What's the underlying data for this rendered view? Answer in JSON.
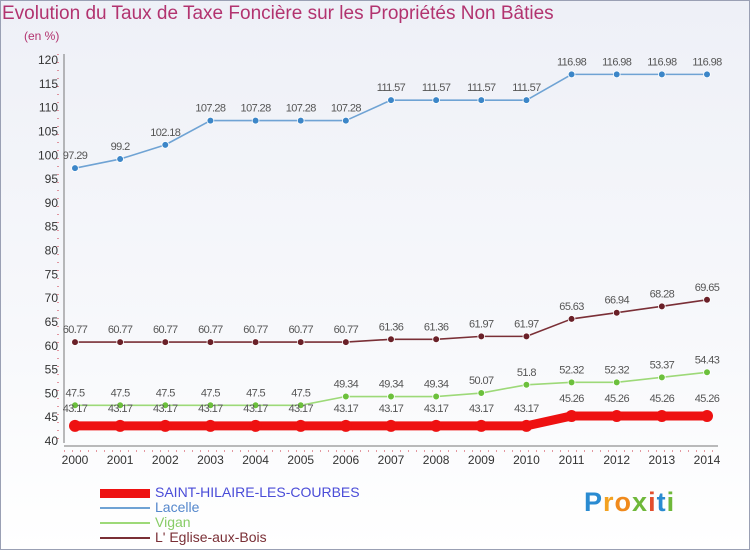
{
  "title": "Evolution du Taux de Taxe Foncière sur les Propriétés Non Bâties",
  "subtitle": "(en %)",
  "brand": {
    "letters": [
      "P",
      "r",
      "o",
      "x",
      "i",
      "t",
      "i"
    ],
    "colors": [
      "#2a8bd1",
      "#f3a221",
      "#f08a1c",
      "#6fb83a",
      "#e34e2d",
      "#2a8bd1",
      "#6fb83a"
    ]
  },
  "chart_data": {
    "type": "line",
    "x": [
      "2000",
      "2001",
      "2002",
      "2003",
      "2004",
      "2005",
      "2006",
      "2007",
      "2008",
      "2009",
      "2010",
      "2011",
      "2012",
      "2013",
      "2014"
    ],
    "ylim": [
      40,
      120
    ],
    "yticks": [
      40,
      45,
      50,
      55,
      60,
      65,
      70,
      75,
      80,
      85,
      90,
      95,
      100,
      105,
      110,
      115,
      120
    ],
    "legend_position": "bottom-left",
    "grid": false,
    "series": [
      {
        "name": "SAINT-HILAIRE-LES-COURBES",
        "color": "#ee1111",
        "legend_text_color": "#4a4cd8",
        "values": [
          43.17,
          43.17,
          43.17,
          43.17,
          43.17,
          43.17,
          43.17,
          43.17,
          43.17,
          43.17,
          43.17,
          45.26,
          45.26,
          45.26,
          45.26
        ],
        "labels": [
          "43.17",
          "43.17",
          "43.17",
          "43.17",
          "43.17",
          "43.17",
          "43.17",
          "43.17",
          "43.17",
          "43.17",
          "43.17",
          "45.26",
          "45.26",
          "45.26",
          "45.26"
        ]
      },
      {
        "name": "Lacelle",
        "color": "#6fa3d4",
        "marker": "#3c86c8",
        "legend_text_color": "#5588cc",
        "values": [
          97.29,
          99.2,
          102.18,
          107.28,
          107.28,
          107.28,
          107.28,
          111.57,
          111.57,
          111.57,
          111.57,
          116.98,
          116.98,
          116.98,
          116.98
        ],
        "labels": [
          "97.29",
          "99.2",
          "102.18",
          "107.28",
          "107.28",
          "107.28",
          "107.28",
          "111.57",
          "111.57",
          "111.57",
          "111.57",
          "116.98",
          "116.98",
          "116.98",
          "116.98"
        ]
      },
      {
        "name": "Vigan",
        "color": "#9dd978",
        "marker": "#6cc03c",
        "legend_text_color": "#88cc66",
        "values": [
          47.5,
          47.5,
          47.5,
          47.5,
          47.5,
          47.5,
          49.34,
          49.34,
          49.34,
          50.07,
          51.8,
          52.32,
          52.32,
          53.37,
          54.43
        ],
        "labels": [
          "47.5",
          "47.5",
          "47.5",
          "47.5",
          "47.5",
          "47.5",
          "49.34",
          "49.34",
          "49.34",
          "50.07",
          "51.8",
          "52.32",
          "52.32",
          "53.37",
          "54.43"
        ]
      },
      {
        "name": "L' Eglise-aux-Bois",
        "color": "#7a2f36",
        "marker": "#6a2028",
        "legend_text_color": "#7a2f36",
        "values": [
          60.77,
          60.77,
          60.77,
          60.77,
          60.77,
          60.77,
          60.77,
          61.36,
          61.36,
          61.97,
          61.97,
          65.63,
          66.94,
          68.28,
          69.65
        ],
        "labels": [
          "60.77",
          "60.77",
          "60.77",
          "60.77",
          "60.77",
          "60.77",
          "60.77",
          "61.36",
          "61.36",
          "61.97",
          "61.97",
          "65.63",
          "66.94",
          "68.28",
          "69.65"
        ]
      }
    ]
  }
}
